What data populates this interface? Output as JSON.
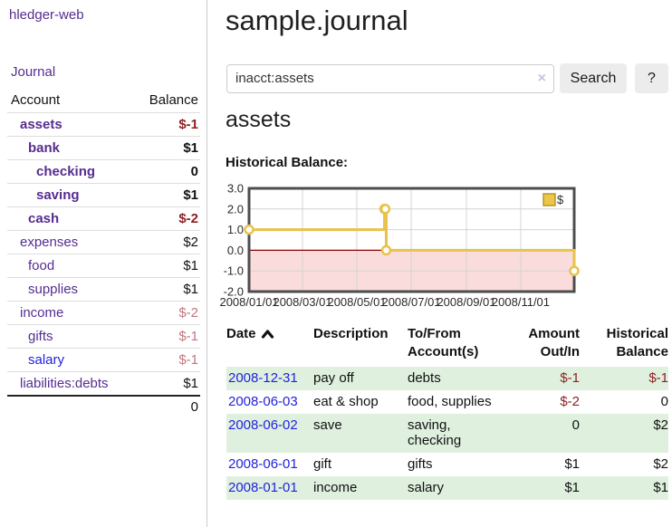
{
  "app": {
    "brand": "hledger-web",
    "nav": {
      "journal": "Journal"
    }
  },
  "sidebar": {
    "table_header": {
      "account": "Account",
      "balance": "Balance"
    },
    "accounts": [
      {
        "name": "assets",
        "depth": 1,
        "balance": "$-1",
        "bold": true,
        "tone": "neg"
      },
      {
        "name": "bank",
        "depth": 2,
        "balance": "$1",
        "bold": true,
        "tone": "pos"
      },
      {
        "name": "checking",
        "depth": 3,
        "balance": "0",
        "bold": true,
        "tone": "pos"
      },
      {
        "name": "saving",
        "depth": 3,
        "balance": "$1",
        "bold": true,
        "tone": "pos"
      },
      {
        "name": "cash",
        "depth": 2,
        "balance": "$-2",
        "bold": true,
        "tone": "neg"
      },
      {
        "name": "expenses",
        "depth": 1,
        "balance": "$2",
        "bold": false,
        "tone": "pos"
      },
      {
        "name": "food",
        "depth": 2,
        "balance": "$1",
        "bold": false,
        "tone": "pos"
      },
      {
        "name": "supplies",
        "depth": 2,
        "balance": "$1",
        "bold": false,
        "tone": "pos"
      },
      {
        "name": "income",
        "depth": 1,
        "balance": "$-2",
        "bold": false,
        "tone": "neg-light"
      },
      {
        "name": "gifts",
        "depth": 2,
        "balance": "$-1",
        "bold": false,
        "tone": "neg-light"
      },
      {
        "name": "salary",
        "depth": 2,
        "balance": "$-1",
        "bold": false,
        "tone": "neg-light",
        "link_style": "unvisited"
      },
      {
        "name": "liabilities:debts",
        "depth": 1,
        "balance": "$1",
        "bold": false,
        "tone": "pos"
      }
    ],
    "total": "0"
  },
  "main": {
    "page_title": "sample.journal",
    "search": {
      "value": "inacct:assets",
      "clear": "×",
      "button": "Search",
      "help": "?"
    },
    "account_title": "assets",
    "chart_title": "Historical Balance:"
  },
  "chart_data": {
    "type": "line",
    "step": true,
    "title": "Historical Balance",
    "series": [
      {
        "name": "$",
        "color": "#e8c24a",
        "points": [
          {
            "date": "2008-01-01",
            "day": 0,
            "value": 1
          },
          {
            "date": "2008-06-01",
            "day": 152,
            "value": 2
          },
          {
            "date": "2008-06-02",
            "day": 153,
            "value": 2
          },
          {
            "date": "2008-06-03",
            "day": 154,
            "value": 0
          },
          {
            "date": "2008-12-31",
            "day": 365,
            "value": -1
          }
        ]
      }
    ],
    "xlim_days": [
      0,
      365
    ],
    "ylim": [
      -2,
      3
    ],
    "yticks": [
      "3.0",
      "2.0",
      "1.0",
      "0.0",
      "-1.0",
      "-2.0"
    ],
    "xticks": [
      {
        "label": "2008/01/01",
        "day": 0
      },
      {
        "label": "2008/03/01",
        "day": 60
      },
      {
        "label": "2008/05/01",
        "day": 121
      },
      {
        "label": "2008/07/01",
        "day": 182
      },
      {
        "label": "2008/09/01",
        "day": 244
      },
      {
        "label": "2008/11/01",
        "day": 305
      }
    ],
    "legend": {
      "label": "$",
      "swatch_color": "#ecc747",
      "swatch_border": "#b8962e",
      "position": "top-right"
    },
    "grid": true,
    "colors": {
      "negative_region": "#fadcdc",
      "zero_line": "#8b0000",
      "grid": "#d4d4d4",
      "border": "#4d4d4d"
    }
  },
  "register": {
    "headers": [
      {
        "line1": "Date",
        "line2": "",
        "align": "left",
        "sort": "asc"
      },
      {
        "line1": "Description",
        "line2": "",
        "align": "left"
      },
      {
        "line1": "To/From",
        "line2": "Account(s)",
        "align": "left"
      },
      {
        "line1": "Amount",
        "line2": "Out/In",
        "align": "right"
      },
      {
        "line1": "Historical",
        "line2": "Balance",
        "align": "right"
      }
    ],
    "rows": [
      {
        "date": "2008-12-31",
        "description": "pay off",
        "accounts": "debts",
        "amount": "$-1",
        "amount_tone": "neg",
        "balance": "$-1",
        "balance_tone": "neg"
      },
      {
        "date": "2008-06-03",
        "description": "eat & shop",
        "accounts": "food, supplies",
        "amount": "$-2",
        "amount_tone": "neg",
        "balance": "0",
        "balance_tone": "pos"
      },
      {
        "date": "2008-06-02",
        "description": "save",
        "accounts": "saving, checking",
        "amount": "0",
        "amount_tone": "pos",
        "balance": "$2",
        "balance_tone": "pos"
      },
      {
        "date": "2008-06-01",
        "description": "gift",
        "accounts": "gifts",
        "amount": "$1",
        "amount_tone": "pos",
        "balance": "$2",
        "balance_tone": "pos"
      },
      {
        "date": "2008-01-01",
        "description": "income",
        "accounts": "salary",
        "amount": "$1",
        "amount_tone": "pos",
        "balance": "$1",
        "balance_tone": "pos"
      }
    ]
  },
  "colors": {
    "link_purple": "#552d90",
    "link_blue": "#2222dd",
    "neg_strong": "#8f2022",
    "neg_light": "#c1777e",
    "row_green": "#dff0df"
  }
}
